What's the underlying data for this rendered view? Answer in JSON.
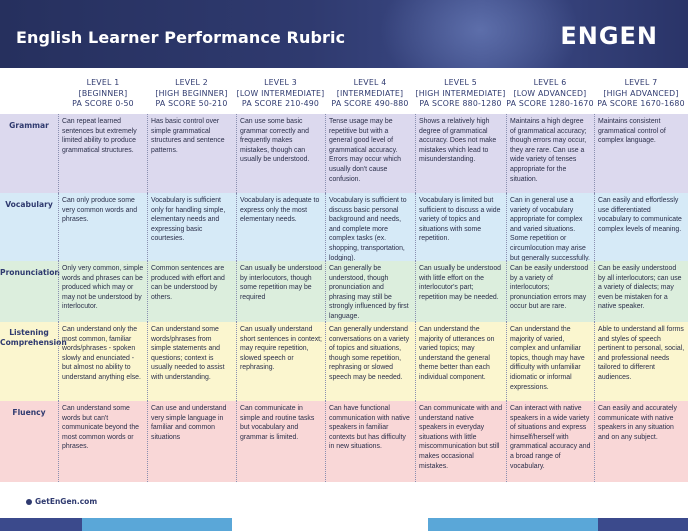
{
  "header": {
    "title": "English Learner Performance Rubric",
    "logo_part1": "EN",
    "logo_part2": "GEN"
  },
  "levels": [
    {
      "name": "LEVEL 1",
      "tier": "[BEGINNER]",
      "score": "PA SCORE 0-50"
    },
    {
      "name": "LEVEL 2",
      "tier": "[HIGH BEGINNER]",
      "score": "PA SCORE 50-210"
    },
    {
      "name": "LEVEL 3",
      "tier": "[LOW INTERMEDIATE]",
      "score": "PA SCORE 210-490"
    },
    {
      "name": "LEVEL 4",
      "tier": "[INTERMEDIATE]",
      "score": "PA SCORE 490-880"
    },
    {
      "name": "LEVEL 5",
      "tier": "[HIGH INTERMEDIATE]",
      "score": "PA SCORE 880-1280"
    },
    {
      "name": "LEVEL 6",
      "tier": "[LOW ADVANCED]",
      "score": "PA SCORE 1280-1670"
    },
    {
      "name": "LEVEL 7",
      "tier": "[HIGH ADVANCED]",
      "score": "PA SCORE 1670-1680"
    }
  ],
  "rows": {
    "grammar": {
      "label": "Grammar",
      "cells": [
        "Can repeat learned sentences but extremely limited ability to produce grammatical structures.",
        "Has basic control over simple grammatical structures and sentence patterns.",
        "Can use some basic grammar correctly and frequently makes mistakes, though can usually be understood.",
        "Tense usage may be repetitive but with a general good level of grammatical accuracy. Errors may occur which usually don't cause confusion.",
        "Shows a relatively high degree of grammatical accuracy. Does not make mistakes which lead to misunderstanding.",
        "Maintains a high degree of grammatical accuracy; though errors may occur, they are rare. Can use a wide variety of tenses appropriate for the situation.",
        "Maintains consistent grammatical control of complex language."
      ]
    },
    "vocabulary": {
      "label": "Vocabulary",
      "cells": [
        "Can only produce some very common words and phrases.",
        "Vocabulary is sufficient only for handling simple, elementary needs and expressing basic courtesies.",
        "Vocabulary is adequate to express only the most elementary needs.",
        "Vocabulary is sufficient to discuss basic personal background and needs, and complete more complex tasks (ex. shopping, transportation, lodging).",
        "Vocabulary is limited but sufficient to discuss a wide variety of topics and situations with some repetition.",
        "Can in general use a variety of vocabulary appropriate for complex and varied situations. Some repetition or circumlocution may arise but generally successfully.",
        "Can easily and effortlessly use differentiated vocabulary to communicate complex levels of meaning."
      ]
    },
    "pronunciation": {
      "label": "Pronunciation",
      "cells": [
        "Only very common, simple words and phrases can be produced which may or may not be understood by interlocutor.",
        "Common sentences are produced with effort and can be understood by others.",
        "Can usually be understood by interlocutors, though some repetition may be required",
        "Can generally be understood, though pronunciation and phrasing may still be strongly influenced by first language.",
        "Can usually be understood with little effort on the interlocutor's part; repetition may be needed.",
        "Can be easily understood by a variety of interlocutors; pronunciation errors may occur but are rare.",
        "Can be easily understood by all interlocutors; can use a variety of dialects; may even be mistaken for a native speaker."
      ]
    },
    "listening": {
      "label_line1": "Listening",
      "label_line2": "Comprehension",
      "cells": [
        "Can understand only the most common, familiar words/phrases - spoken slowly and enunciated - but almost no ability to understand anything else.",
        "Can understand some words/phrases from simple statements and questions; context is usually needed to assist with understanding.",
        "Can usually understand short sentences in context; may require repetition, slowed speech or rephrasing.",
        "Can generally understand conversations on a variety of topics and situations, though some repetition, rephrasing or slowed speech may be needed.",
        "Can understand the majority of utterances on varied topics; may understand the general theme better than each individual component.",
        "Can understand the majority of varied, complex and unfamiliar topics, though may have difficulty with unfamiliar idiomatic or informal expressions.",
        "Able to understand all forms and styles of speech pertinent to personal, social, and professional needs tailored to different audiences."
      ]
    },
    "fluency": {
      "label": "Fluency",
      "cells": [
        "Can understand some words but can't communicate beyond the most common words or phrases.",
        "Can use and understand very simple language in familiar and common situations",
        "Can communicate in simple and routine tasks but vocabulary and grammar is limited.",
        "Can have functional communication with native speakers in familiar contexts but has difficulty in new situations.",
        "Can communicate with and understand native speakers in everyday situations with little miscommunication but still makes occasional mistakes.",
        "Can interact with native speakers in a wide variety of situations and express himself/herself with grammatical accuracy and a broad range of vocabulary.",
        "Can easily and accurately communicate with native speakers in any situation and on any subject."
      ]
    }
  },
  "footer": {
    "link": "GetEnGen.com"
  }
}
